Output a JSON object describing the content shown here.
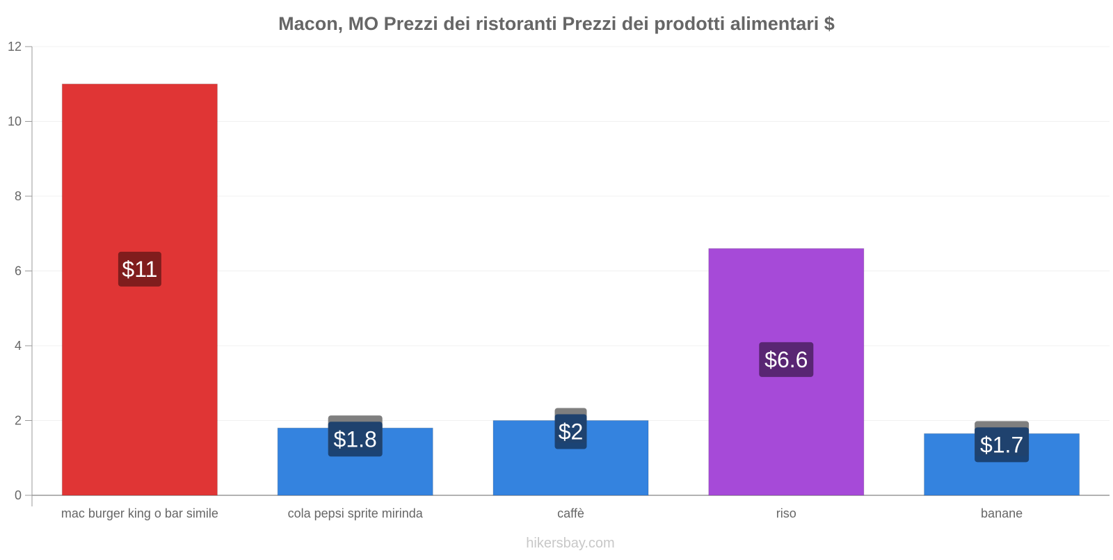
{
  "chart_data": {
    "type": "bar",
    "title": "Macon, MO Prezzi dei ristoranti Prezzi dei prodotti alimentari $",
    "xlabel": "",
    "ylabel": "",
    "ylim": [
      0,
      12
    ],
    "yticks": [
      0,
      2,
      4,
      6,
      8,
      10,
      12
    ],
    "grid": true,
    "categories": [
      "mac burger king o bar simile",
      "cola pepsi sprite mirinda",
      "caffè",
      "riso",
      "banane"
    ],
    "values": [
      11,
      1.8,
      2,
      6.6,
      1.65
    ],
    "value_labels": [
      "$11",
      "$1.8",
      "$2",
      "$6.6",
      "$1.7"
    ],
    "bar_colors": [
      "#e03535",
      "#3483df",
      "#3483df",
      "#a64ad8",
      "#3483df"
    ],
    "label_bg_colors": [
      "#7a1c1c",
      "#1a3f6e",
      "#1a3f6e",
      "#54246e",
      "#1a3f6e"
    ]
  },
  "watermark": "hikersbay.com"
}
